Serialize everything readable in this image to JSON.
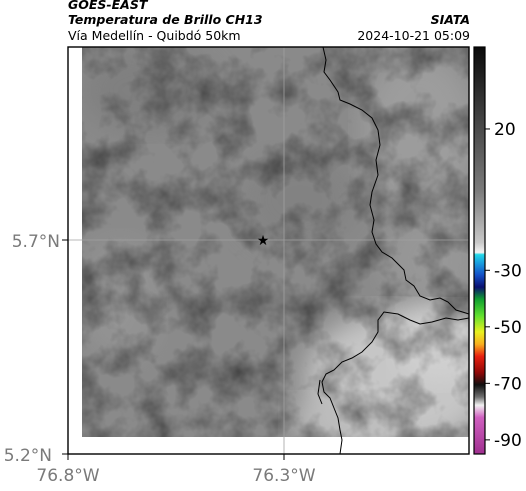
{
  "header": {
    "satellite": "GOES-EAST",
    "product": "Temperatura de Brillo CH13",
    "region": "Vía Medellín - Quibdó 50km",
    "agency": "SIATA",
    "timestamp": "2024-10-21 05:09"
  },
  "map": {
    "lat_ticks": [
      "5.7°N",
      "5.2°N"
    ],
    "lon_ticks": [
      "76.8°W",
      "76.3°W"
    ],
    "marker_icon": "star-icon",
    "colors": {
      "land_gray": "#8a8a8a",
      "cloud_light": "#c8c8c8",
      "border": "#000000",
      "grid": "#a0a0a0"
    }
  },
  "colorbar": {
    "tick_labels": [
      "20",
      "-30",
      "-50",
      "-70",
      "-90"
    ],
    "tick_values": [
      20,
      -30,
      -50,
      -70,
      -90
    ],
    "range": [
      -95,
      49
    ]
  }
}
